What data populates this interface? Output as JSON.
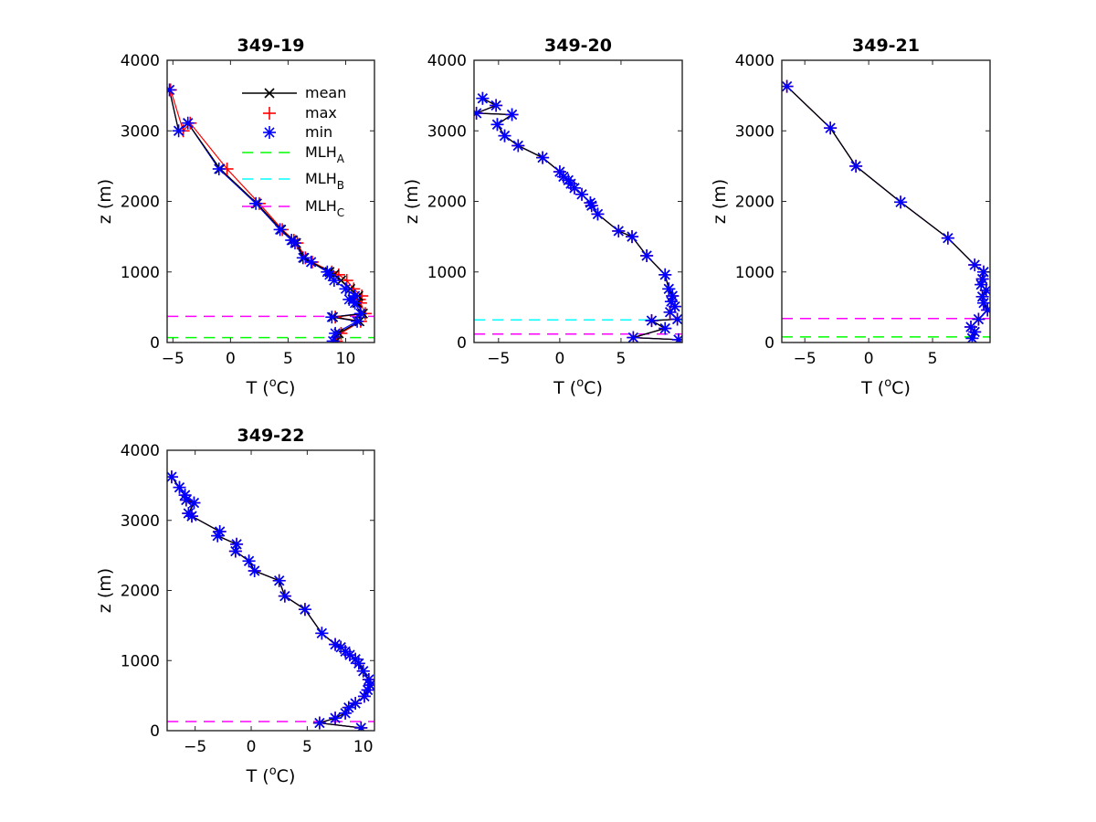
{
  "chart_data": [
    {
      "type": "line",
      "title": "349-19",
      "xlabel": "T (",
      "xlabel_sup": "o",
      "xlabel_tail": "C)",
      "ylabel": "z (m)",
      "xlim": [
        -5.5,
        12.5
      ],
      "ylim": [
        0,
        4000
      ],
      "xticks": [
        -5,
        0,
        5,
        10
      ],
      "yticks": [
        0,
        1000,
        2000,
        3000,
        4000
      ],
      "legend": {
        "placement": "top-right",
        "entries": [
          {
            "label": "mean",
            "sub": ""
          },
          {
            "label": "max",
            "sub": ""
          },
          {
            "label": "min",
            "sub": ""
          },
          {
            "label": "MLH",
            "sub": "A"
          },
          {
            "label": "MLH",
            "sub": "B"
          },
          {
            "label": "MLH",
            "sub": "C"
          }
        ]
      },
      "mlh": {
        "A": 70,
        "B": null,
        "C": 370
      },
      "mean": {
        "T": [
          9.2,
          9.4,
          11.2,
          8.9,
          11.5,
          11.0,
          10.6,
          11.1,
          10.4,
          9.6,
          9.0,
          8.6,
          7.0,
          6.4,
          5.7,
          5.4,
          4.4,
          2.3,
          -0.9,
          -3.7,
          -4.5,
          -5.3
        ],
        "z": [
          20,
          130,
          300,
          360,
          410,
          560,
          610,
          660,
          760,
          880,
          960,
          1000,
          1140,
          1200,
          1410,
          1450,
          1600,
          1970,
          2460,
          3110,
          3000,
          3580
        ]
      },
      "max": {
        "T": [
          9.2,
          9.6,
          11.3,
          9.1,
          11.7,
          11.3,
          11.2,
          11.4,
          10.7,
          10.1,
          9.4,
          8.8,
          7.1,
          6.5,
          5.8,
          5.5,
          4.5,
          2.5,
          -0.3,
          -3.5,
          -4.1,
          -5.2
        ],
        "z": [
          20,
          130,
          300,
          360,
          410,
          560,
          610,
          660,
          760,
          880,
          960,
          1000,
          1140,
          1200,
          1410,
          1450,
          1600,
          1970,
          2460,
          3110,
          3000,
          3580
        ]
      },
      "min": {
        "T": [
          8.9,
          9.1,
          11.0,
          8.8,
          11.3,
          10.8,
          10.3,
          10.8,
          10.0,
          9.0,
          8.6,
          8.4,
          7.0,
          6.3,
          5.6,
          5.3,
          4.3,
          2.2,
          -1.0,
          -3.7,
          -4.5,
          -5.3
        ],
        "z": [
          20,
          130,
          300,
          360,
          410,
          560,
          610,
          660,
          760,
          880,
          960,
          1000,
          1140,
          1200,
          1410,
          1450,
          1600,
          1970,
          2460,
          3110,
          3000,
          3580
        ]
      }
    },
    {
      "type": "line",
      "title": "349-20",
      "xlabel": "T (",
      "xlabel_sup": "o",
      "xlabel_tail": "C)",
      "ylabel": "z (m)",
      "xlim": [
        -7,
        10
      ],
      "ylim": [
        0,
        4000
      ],
      "xticks": [
        -5,
        0,
        5
      ],
      "yticks": [
        0,
        1000,
        2000,
        3000,
        4000
      ],
      "mlh": {
        "A": null,
        "B": 320,
        "C": 120
      },
      "mean": {
        "T": [
          9.7,
          6.0,
          8.6,
          7.5,
          9.6,
          9.0,
          9.4,
          9.1,
          9.2,
          8.9,
          8.6,
          7.1,
          5.9,
          4.8,
          3.1,
          2.6,
          2.5,
          1.8,
          1.2,
          0.9,
          0.7,
          0.3,
          0.0,
          -1.4,
          -3.4,
          -4.5,
          -5.1,
          -3.9,
          -6.8,
          -5.2,
          -6.3
        ],
        "z": [
          40,
          70,
          200,
          310,
          330,
          430,
          510,
          580,
          660,
          760,
          960,
          1230,
          1500,
          1580,
          1820,
          1940,
          1980,
          2100,
          2190,
          2250,
          2300,
          2350,
          2420,
          2620,
          2790,
          2930,
          3090,
          3230,
          3250,
          3360,
          3460
        ]
      },
      "max": {
        "T": [
          9.7,
          6.0,
          8.6,
          7.5,
          9.6,
          9.0,
          9.4,
          9.1,
          9.2,
          8.9,
          8.6,
          7.1,
          5.9,
          4.8,
          3.1,
          2.6,
          2.5,
          1.8,
          1.2,
          0.9,
          0.7,
          0.3,
          0.0,
          -1.4,
          -3.4,
          -4.5,
          -5.1,
          -3.9,
          -6.8,
          -5.2,
          -6.3
        ],
        "z": [
          40,
          70,
          200,
          310,
          330,
          430,
          510,
          580,
          660,
          760,
          960,
          1230,
          1500,
          1580,
          1820,
          1940,
          1980,
          2100,
          2190,
          2250,
          2300,
          2350,
          2420,
          2620,
          2790,
          2930,
          3090,
          3230,
          3250,
          3360,
          3460
        ]
      },
      "min": {
        "T": [
          9.7,
          6.0,
          8.6,
          7.5,
          9.6,
          9.0,
          9.4,
          9.1,
          9.2,
          8.9,
          8.6,
          7.1,
          5.9,
          4.8,
          3.1,
          2.6,
          2.5,
          1.8,
          1.2,
          0.9,
          0.7,
          0.3,
          0.0,
          -1.4,
          -3.4,
          -4.5,
          -5.1,
          -3.9,
          -6.8,
          -5.2,
          -6.3
        ],
        "z": [
          40,
          70,
          200,
          310,
          330,
          430,
          510,
          580,
          660,
          760,
          960,
          1230,
          1500,
          1580,
          1820,
          1940,
          1980,
          2100,
          2190,
          2250,
          2300,
          2350,
          2420,
          2620,
          2790,
          2930,
          3090,
          3230,
          3250,
          3360,
          3460
        ]
      }
    },
    {
      "type": "line",
      "title": "349-21",
      "xlabel": "T (",
      "xlabel_sup": "o",
      "xlabel_tail": "C)",
      "ylabel": "z (m)",
      "xlim": [
        -6.8,
        9.5
      ],
      "ylim": [
        0,
        4000
      ],
      "xticks": [
        -5,
        0,
        5
      ],
      "yticks": [
        0,
        1000,
        2000,
        3000,
        4000
      ],
      "mlh": {
        "A": 80,
        "B": null,
        "C": 340
      },
      "mean": {
        "T": [
          8.1,
          8.3,
          8.0,
          8.6,
          9.3,
          9.0,
          8.9,
          9.2,
          8.8,
          8.9,
          9.0,
          8.3,
          6.2,
          2.5,
          -1.0,
          -3.0,
          -6.4
        ],
        "z": [
          60,
          150,
          220,
          330,
          460,
          560,
          650,
          740,
          820,
          900,
          1000,
          1100,
          1480,
          1990,
          2500,
          3040,
          3630
        ]
      },
      "max": {
        "T": [
          8.1,
          8.3,
          8.0,
          8.6,
          9.3,
          9.0,
          8.9,
          9.2,
          8.8,
          8.9,
          9.0,
          8.3,
          6.2,
          2.5,
          -1.0,
          -3.0,
          -6.4
        ],
        "z": [
          60,
          150,
          220,
          330,
          460,
          560,
          650,
          740,
          820,
          900,
          1000,
          1100,
          1480,
          1990,
          2500,
          3040,
          3630
        ]
      },
      "min": {
        "T": [
          8.1,
          8.3,
          8.0,
          8.6,
          9.3,
          9.0,
          8.9,
          9.2,
          8.8,
          8.9,
          9.0,
          8.3,
          6.2,
          2.5,
          -1.0,
          -3.0,
          -6.4
        ],
        "z": [
          60,
          150,
          220,
          330,
          460,
          560,
          650,
          740,
          820,
          900,
          1000,
          1100,
          1480,
          1990,
          2500,
          3040,
          3630
        ]
      }
    },
    {
      "type": "line",
      "title": "349-22",
      "xlabel": "T (",
      "xlabel_sup": "o",
      "xlabel_tail": "C)",
      "ylabel": "z (m)",
      "xlim": [
        -7.5,
        11
      ],
      "ylim": [
        0,
        4000
      ],
      "xticks": [
        -5,
        0,
        5,
        10
      ],
      "yticks": [
        0,
        1000,
        2000,
        3000,
        4000
      ],
      "mlh": {
        "A": null,
        "B": null,
        "C": 130
      },
      "mean": {
        "T": [
          9.8,
          6.1,
          7.5,
          8.4,
          8.7,
          9.3,
          10.1,
          10.4,
          10.6,
          10.5,
          10.0,
          9.6,
          9.3,
          8.8,
          8.4,
          8.0,
          7.5,
          6.3,
          4.8,
          3.0,
          2.5,
          0.3,
          -0.2,
          -1.4,
          -1.3,
          -3.0,
          -2.8,
          -5.3,
          -5.6,
          -5.1,
          -5.8,
          -5.9,
          -6.4,
          -7.1
        ],
        "z": [
          40,
          110,
          180,
          250,
          330,
          390,
          490,
          580,
          650,
          730,
          850,
          960,
          1020,
          1080,
          1130,
          1190,
          1230,
          1390,
          1730,
          1920,
          2140,
          2280,
          2420,
          2560,
          2660,
          2780,
          2840,
          3060,
          3100,
          3250,
          3290,
          3360,
          3470,
          3620
        ]
      },
      "max": {
        "T": [
          9.8,
          6.1,
          7.5,
          8.4,
          8.7,
          9.3,
          10.1,
          10.4,
          10.6,
          10.5,
          10.0,
          9.6,
          9.3,
          8.8,
          8.4,
          8.0,
          7.5,
          6.3,
          4.8,
          3.0,
          2.5,
          0.3,
          -0.2,
          -1.4,
          -1.3,
          -3.0,
          -2.8,
          -5.3,
          -5.6,
          -5.1,
          -5.8,
          -5.9,
          -6.4,
          -7.1
        ],
        "z": [
          40,
          110,
          180,
          250,
          330,
          390,
          490,
          580,
          650,
          730,
          850,
          960,
          1020,
          1080,
          1130,
          1190,
          1230,
          1390,
          1730,
          1920,
          2140,
          2280,
          2420,
          2560,
          2660,
          2780,
          2840,
          3060,
          3100,
          3250,
          3290,
          3360,
          3470,
          3620
        ]
      },
      "min": {
        "T": [
          9.8,
          6.1,
          7.5,
          8.4,
          8.7,
          9.3,
          10.1,
          10.4,
          10.6,
          10.5,
          10.0,
          9.6,
          9.3,
          8.8,
          8.4,
          8.0,
          7.5,
          6.3,
          4.8,
          3.0,
          2.5,
          0.3,
          -0.2,
          -1.4,
          -1.3,
          -3.0,
          -2.8,
          -5.3,
          -5.6,
          -5.1,
          -5.8,
          -5.9,
          -6.4,
          -7.1
        ],
        "z": [
          40,
          110,
          180,
          250,
          330,
          390,
          490,
          580,
          650,
          730,
          850,
          960,
          1020,
          1080,
          1130,
          1190,
          1230,
          1390,
          1730,
          1920,
          2140,
          2280,
          2420,
          2560,
          2660,
          2780,
          2840,
          3060,
          3100,
          3250,
          3290,
          3360,
          3470,
          3620
        ]
      }
    }
  ],
  "colors": {
    "mean": "#000000",
    "max": "#ff0000",
    "min": "#0000ff",
    "MLH_A": "#00ff00",
    "MLH_B": "#00ffff",
    "MLH_C": "#ff00ff",
    "axes": "#262626"
  }
}
